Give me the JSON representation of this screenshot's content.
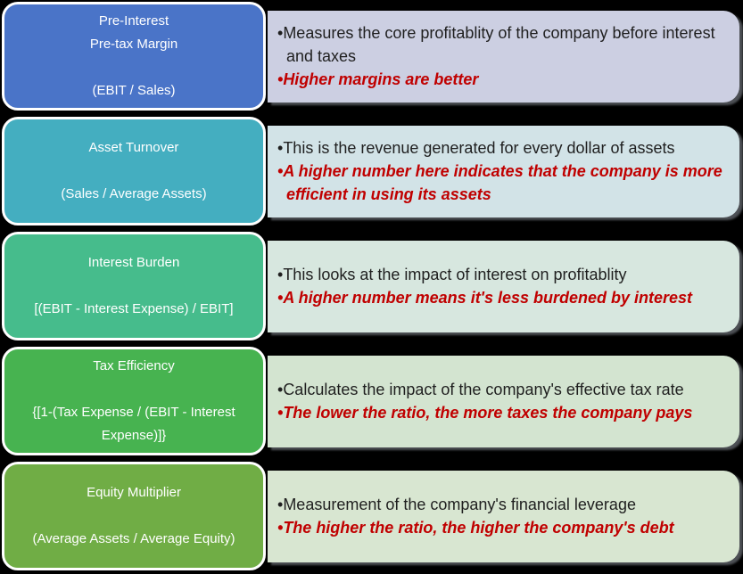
{
  "colors": {
    "background": "#000000",
    "box_border": "#FFFFFF",
    "box_text": "#FFFFFF",
    "body_text": "#1F1F1F",
    "emphasis_text": "#C00000"
  },
  "bullet_char": "•",
  "rows": [
    {
      "title": "Pre-Interest\nPre-tax Margin",
      "formula": "(EBIT / Sales)",
      "box_color": "#4A74C8",
      "panel_color": "#CCCFE2",
      "bullets": [
        "Measures the core profitablity of the company before interest and taxes",
        "Higher margins are better"
      ]
    },
    {
      "title": "Asset Turnover",
      "formula": "(Sales / Average Assets)",
      "box_color": "#44AEC0",
      "panel_color": "#D2E3E7",
      "bullets": [
        "This is the revenue generated for every dollar of assets",
        "A higher number here indicates that the company is more efficient in using its assets"
      ]
    },
    {
      "title": "Interest Burden",
      "formula": "[(EBIT - Interest Expense) / EBIT]",
      "box_color": "#46BC8C",
      "panel_color": "#D7E7DF",
      "bullets": [
        "This looks at the impact of interest on profitablity",
        "A higher number means it's less burdened by interest"
      ]
    },
    {
      "title": "Tax Efficiency",
      "formula": "{[1-(Tax Expense / (EBIT - Interest Expense)]}",
      "box_color": "#47B350",
      "panel_color": "#D3E4D0",
      "bullets": [
        "Calculates the impact of the company's effective tax rate",
        "The lower the ratio, the more taxes the company pays"
      ]
    },
    {
      "title": "Equity Multiplier",
      "formula": "(Average Assets / Average Equity)",
      "box_color": "#70AD45",
      "panel_color": "#D8E6D1",
      "bullets": [
        "Measurement of the company's financial leverage",
        "The higher the ratio, the higher the company's debt"
      ]
    }
  ]
}
